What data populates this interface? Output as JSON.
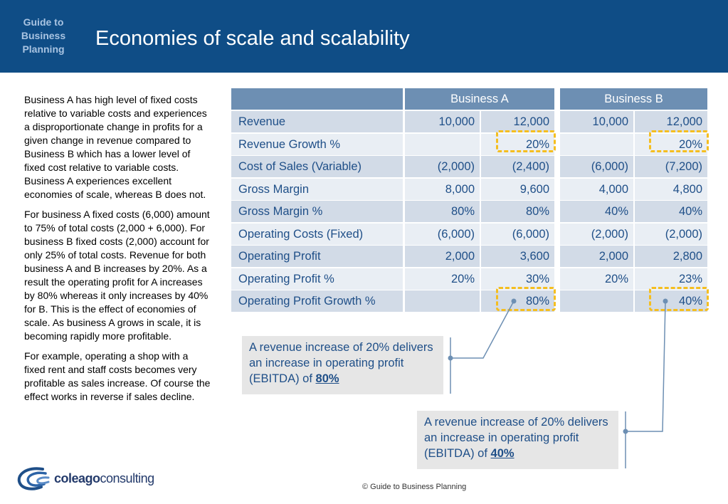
{
  "header": {
    "guide_label": "Guide to\nBusiness\nPlanning",
    "title": "Economies of scale and scalability"
  },
  "intro": {
    "paragraphs": [
      "Business A has high level of fixed costs relative to variable costs and experiences a disproportionate change in profits for a given change in revenue compared to Business B which has a lower level of fixed cost relative to variable costs.  Business A experiences excellent economies of scale, whereas B does not.",
      "For business A fixed costs (6,000) amount to 75% of total costs (2,000 + 6,000). For business B fixed costs (2,000) account for only 25% of total costs.  Revenue for both business  A and B increases by 20%. As a result the operating profit for A increases by 80% whereas it only increases by 40% for B. This is the effect of economies of scale.  As business A grows in scale, it is becoming rapidly more profitable.",
      "For example, operating a shop with a fixed rent and staff costs becomes very profitable as sales increase. Of course the effect works in reverse if sales decline."
    ]
  },
  "table": {
    "headers": {
      "business_a": "Business  A",
      "business_b": "Business B"
    },
    "rows": [
      {
        "label": "Revenue",
        "a1": "10,000",
        "a2": "12,000",
        "b1": "10,000",
        "b2": "12,000"
      },
      {
        "label": "Revenue Growth %",
        "a1": "",
        "a2": "20%",
        "b1": "",
        "b2": "20%"
      },
      {
        "label": "Cost of Sales (Variable)",
        "a1": "(2,000)",
        "a2": "(2,400)",
        "b1": "(6,000)",
        "b2": "(7,200)"
      },
      {
        "label": "Gross Margin",
        "a1": "8,000",
        "a2": "9,600",
        "b1": "4,000",
        "b2": "4,800"
      },
      {
        "label": "Gross Margin %",
        "a1": "80%",
        "a2": "80%",
        "b1": "40%",
        "b2": "40%"
      },
      {
        "label": "Operating Costs (Fixed)",
        "a1": "(6,000)",
        "a2": "(6,000)",
        "b1": "(2,000)",
        "b2": "(2,000)"
      },
      {
        "label": "Operating Profit",
        "a1": "2,000",
        "a2": "3,600",
        "b1": "2,000",
        "b2": "2,800"
      },
      {
        "label": "Operating Profit %",
        "a1": "20%",
        "a2": "30%",
        "b1": "20%",
        "b2": "23%"
      },
      {
        "label": "Operating Profit Growth %",
        "a1": "",
        "a2": "80%",
        "b1": "",
        "b2": "40%"
      }
    ]
  },
  "callouts": {
    "a": {
      "text": "A revenue increase of 20% delivers an increase in operating profit  (EBITDA) of ",
      "value": "80%"
    },
    "b": {
      "text": "A revenue increase of 20% delivers an increase in operating profit  (EBITDA) of ",
      "value": "40%"
    }
  },
  "logo": {
    "bold": "coleago",
    "normal": "consulting"
  },
  "footer": {
    "text": "© Guide to Business Planning"
  },
  "colors": {
    "header_bg": "#0f4d86",
    "table_header": "#6d8fb3",
    "row_dark": "#d2dbe7",
    "row_light": "#e9eef4",
    "text_blue": "#1f4f88",
    "highlight": "#f5be1f"
  }
}
